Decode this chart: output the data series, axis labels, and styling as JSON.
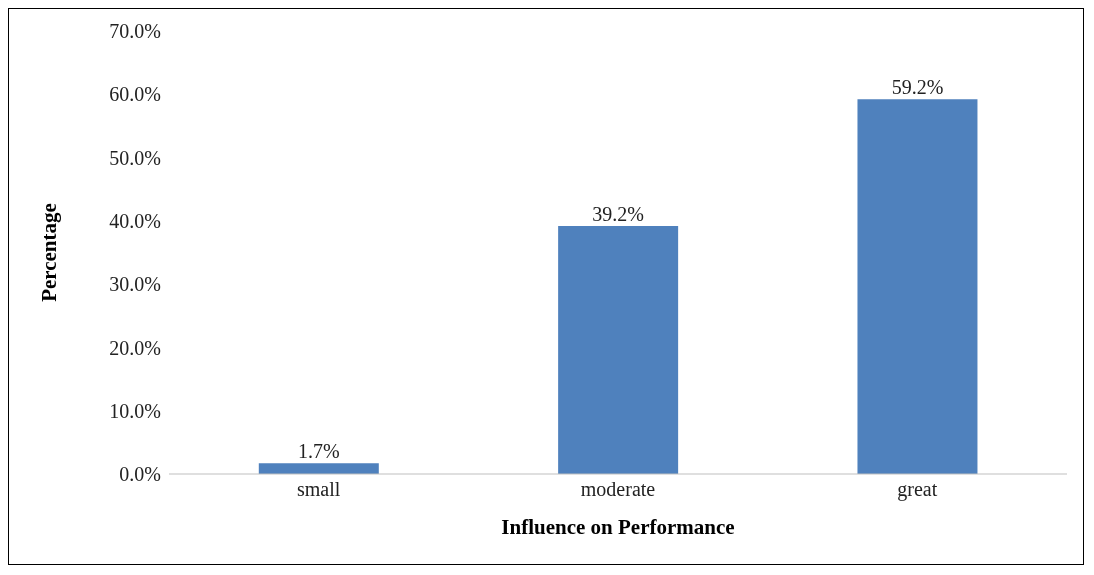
{
  "chart_data": {
    "type": "bar",
    "xlabel": "Influence on Performance",
    "ylabel": "Percentage",
    "categories": [
      "small",
      "moderate",
      "great"
    ],
    "values": [
      1.7,
      39.2,
      59.2
    ],
    "color": "#4f81bd",
    "value_labels": [
      "1.7%",
      "39.2%",
      "59.2%"
    ],
    "ylim": [
      0,
      70
    ],
    "yticks": [
      {
        "value": 0,
        "label": "0.0%"
      },
      {
        "value": 10,
        "label": "10.0%"
      },
      {
        "value": 20,
        "label": "20.0%"
      },
      {
        "value": 30,
        "label": "30.0%"
      },
      {
        "value": 40,
        "label": "40.0%"
      },
      {
        "value": 50,
        "label": "50.0%"
      },
      {
        "value": 60,
        "label": "60.0%"
      },
      {
        "value": 70,
        "label": "70.0%"
      }
    ],
    "grid": false,
    "legend": false
  }
}
